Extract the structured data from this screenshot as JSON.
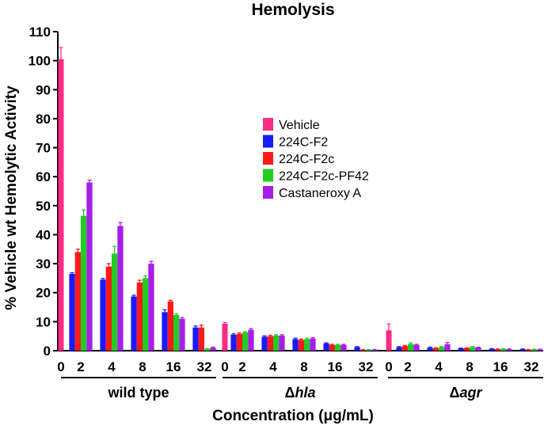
{
  "chart_data": {
    "type": "bar",
    "title": "Hemolysis",
    "ylabel": "% Vehicle wt Hemolytic Activity",
    "xlabel": "Concentration (μg/mL)",
    "ylim": [
      0,
      110
    ],
    "yticks": [
      0,
      10,
      20,
      30,
      40,
      50,
      60,
      70,
      80,
      90,
      100,
      110
    ],
    "concentrations": [
      "2",
      "4",
      "8",
      "16",
      "32"
    ],
    "vehicle_tick": "0",
    "series": [
      {
        "name": "Vehicle",
        "color": "#ff2b85"
      },
      {
        "name": "224C-F2",
        "color": "#1a1aff"
      },
      {
        "name": "224C-F2c",
        "color": "#ff1a1a"
      },
      {
        "name": "224C-F2c-PF42",
        "color": "#22cc22"
      },
      {
        "name": "Castaneroxy A",
        "color": "#a81ee8"
      }
    ],
    "groups": [
      {
        "name": "wild type",
        "name_prefix": "",
        "name_italic": "",
        "vehicle": {
          "value": 100.5,
          "err": 4
        },
        "treatments": [
          [
            26.5,
            34,
            46.5,
            58
          ],
          [
            24.5,
            29,
            33.5,
            43
          ],
          [
            18.7,
            23.5,
            25,
            30
          ],
          [
            13.3,
            17,
            12.3,
            11
          ],
          [
            8,
            8,
            0.5,
            1
          ]
        ],
        "errors": [
          [
            0.4,
            1,
            2,
            0.8
          ],
          [
            0.4,
            1,
            2.5,
            1.2
          ],
          [
            0.4,
            0.8,
            0.8,
            0.8
          ],
          [
            0.8,
            0.4,
            0.4,
            0.4
          ],
          [
            0.5,
            0.8,
            0.2,
            0.2
          ]
        ]
      },
      {
        "name": "Δhla",
        "name_prefix": "Δ",
        "name_italic": "hla",
        "vehicle": {
          "value": 9.3,
          "err": 0.4
        },
        "treatments": [
          [
            5.5,
            5.8,
            6.3,
            7.2
          ],
          [
            4.8,
            5,
            5.2,
            5.2
          ],
          [
            4,
            3.7,
            4,
            4.2
          ],
          [
            2.5,
            2,
            2,
            2
          ],
          [
            1.2,
            0.3,
            0.3,
            0.3
          ]
        ],
        "errors": [
          [
            0.3,
            0.3,
            0.3,
            0.4
          ],
          [
            0.3,
            0.3,
            0.3,
            0.3
          ],
          [
            0.3,
            0.3,
            0.3,
            0.3
          ],
          [
            0.2,
            0.2,
            0.2,
            0.2
          ],
          [
            0.2,
            0.1,
            0.1,
            0.1
          ]
        ]
      },
      {
        "name": "Δagr",
        "name_prefix": "Δ",
        "name_italic": "agr",
        "vehicle": {
          "value": 7,
          "err": 2.2
        },
        "treatments": [
          [
            1.2,
            1.6,
            2.3,
            2
          ],
          [
            1,
            0.8,
            1.2,
            2.2
          ],
          [
            0.8,
            0.9,
            1.2,
            1.1
          ],
          [
            0.6,
            0.5,
            0.6,
            0.5
          ],
          [
            0.5,
            0.3,
            0.4,
            0.4
          ]
        ],
        "errors": [
          [
            0.2,
            0.2,
            0.4,
            0.2
          ],
          [
            0.2,
            0.2,
            0.2,
            0.6
          ],
          [
            0.1,
            0.1,
            0.2,
            0.1
          ],
          [
            0.1,
            0.1,
            0.1,
            0.1
          ],
          [
            0.1,
            0.1,
            0.1,
            0.1
          ]
        ]
      }
    ]
  }
}
